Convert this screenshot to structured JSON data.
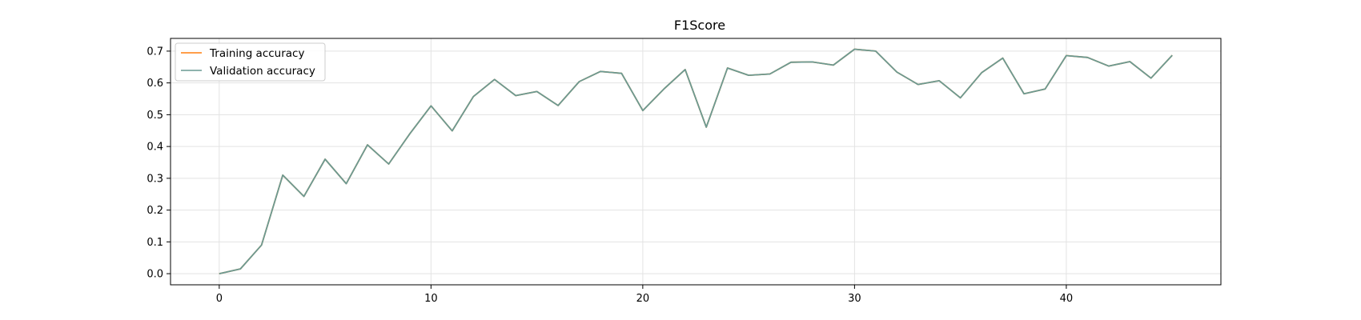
{
  "chart_data": {
    "type": "line",
    "title": "F1Score",
    "xlabel": "",
    "ylabel": "",
    "xlim": [
      -2.3,
      47.3
    ],
    "ylim": [
      -0.035,
      0.74
    ],
    "xticks": [
      0,
      10,
      20,
      30,
      40
    ],
    "yticks": [
      0.0,
      0.1,
      0.2,
      0.3,
      0.4,
      0.5,
      0.6,
      0.7
    ],
    "xtick_labels": [
      "0",
      "10",
      "20",
      "30",
      "40"
    ],
    "ytick_labels": [
      "0.0",
      "0.1",
      "0.2",
      "0.3",
      "0.4",
      "0.5",
      "0.6",
      "0.7"
    ],
    "grid": true,
    "legend_position": "top-left",
    "x": [
      0,
      1,
      2,
      3,
      4,
      5,
      6,
      7,
      8,
      9,
      10,
      11,
      12,
      13,
      14,
      15,
      16,
      17,
      18,
      19,
      20,
      21,
      22,
      23,
      24,
      25,
      26,
      27,
      28,
      29,
      30,
      31,
      32,
      33,
      34,
      35,
      36,
      37,
      38,
      39,
      40,
      41,
      42,
      43,
      44,
      45
    ],
    "series": [
      {
        "name": "Training accuracy",
        "color": "#ff7f0e",
        "values": [
          0.0,
          0.015,
          0.09,
          0.31,
          0.243,
          0.36,
          0.283,
          0.405,
          0.345,
          0.44,
          0.528,
          0.449,
          0.557,
          0.611,
          0.56,
          0.573,
          0.529,
          0.604,
          0.636,
          0.63,
          0.513,
          0.581,
          0.642,
          0.461,
          0.647,
          0.624,
          0.628,
          0.665,
          0.666,
          0.656,
          0.706,
          0.7,
          0.634,
          0.595,
          0.607,
          0.553,
          0.632,
          0.678,
          0.566,
          0.581,
          0.686,
          0.68,
          0.653,
          0.667,
          0.615,
          0.687
        ]
      },
      {
        "name": "Validation accuracy",
        "color": "#6a9a94",
        "values": [
          0.0,
          0.015,
          0.09,
          0.31,
          0.243,
          0.36,
          0.283,
          0.405,
          0.345,
          0.44,
          0.528,
          0.449,
          0.557,
          0.611,
          0.56,
          0.573,
          0.529,
          0.604,
          0.636,
          0.63,
          0.513,
          0.581,
          0.642,
          0.461,
          0.647,
          0.624,
          0.628,
          0.665,
          0.666,
          0.656,
          0.706,
          0.7,
          0.634,
          0.595,
          0.607,
          0.553,
          0.632,
          0.678,
          0.566,
          0.581,
          0.686,
          0.68,
          0.653,
          0.667,
          0.615,
          0.687
        ]
      }
    ]
  }
}
